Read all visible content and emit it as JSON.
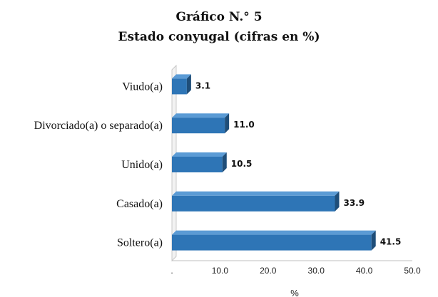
{
  "chart_data": {
    "type": "bar",
    "orientation": "horizontal",
    "title": "Gráfico N.° 5",
    "subtitle": "Estado conyugal (cifras en %)",
    "categories": [
      "Viudo(a)",
      "Divorciado(a) o separado(a)",
      "Unido(a)",
      "Casado(a)",
      "Soltero(a)"
    ],
    "values": [
      3.1,
      11.0,
      10.5,
      33.9,
      41.5
    ],
    "value_labels": [
      "3.1",
      "11.0",
      "10.5",
      "33.9",
      "41.5"
    ],
    "xlabel": "%",
    "xlim": [
      0,
      50
    ],
    "x_ticks": [
      ".",
      "10.0",
      "20.0",
      "30.0",
      "40.0",
      "50.0"
    ],
    "grid": false,
    "legend": "none",
    "bar_color": "#2E75B6",
    "bar_side_color": "#1F4E79",
    "bar_top_color": "#5B9BD5"
  }
}
